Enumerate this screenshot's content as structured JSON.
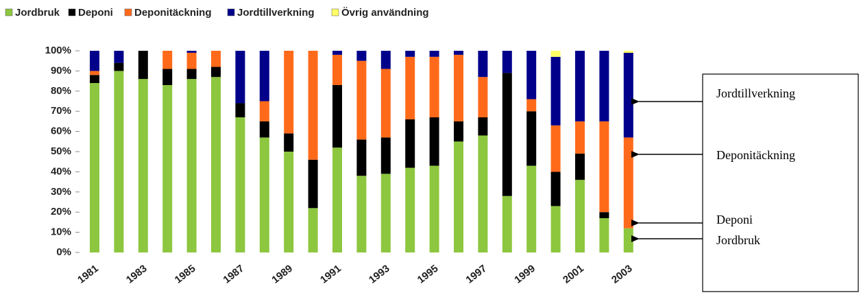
{
  "chart_data": {
    "type": "stacked_bar",
    "categories": [
      "1981",
      null,
      "1983",
      null,
      "1985",
      null,
      "1987",
      null,
      "1989",
      null,
      "1991",
      null,
      "1993",
      null,
      "1995",
      null,
      "1997",
      null,
      "1999",
      null,
      "2001",
      null,
      "2003"
    ],
    "series": [
      {
        "name": "Jordbruk",
        "color": "#8dc63f",
        "values": [
          84,
          90,
          86,
          83,
          86,
          87,
          67,
          57,
          50,
          22,
          52,
          38,
          39,
          42,
          43,
          55,
          58,
          28,
          43,
          23,
          36,
          17,
          12
        ]
      },
      {
        "name": "Deponi",
        "color": "#000000",
        "values": [
          4,
          4,
          14,
          8,
          5,
          5,
          7,
          8,
          9,
          24,
          31,
          18,
          18,
          24,
          24,
          10,
          9,
          61,
          27,
          17,
          13,
          3,
          0
        ]
      },
      {
        "name": "Deponitäckning",
        "color": "#ff6a1a",
        "values": [
          2,
          0,
          0,
          9,
          8,
          8,
          0,
          10,
          41,
          54,
          15,
          39,
          34,
          31,
          30,
          33,
          20,
          0,
          6,
          23,
          16,
          45,
          45
        ]
      },
      {
        "name": "Jordtillverkning",
        "color": "#00008b",
        "values": [
          10,
          6,
          0,
          0,
          1,
          0,
          26,
          25,
          0,
          0,
          2,
          5,
          9,
          3,
          3,
          2,
          13,
          11,
          24,
          34,
          35,
          35,
          42
        ]
      },
      {
        "name": "Övrig användning",
        "color": "#ffff66",
        "values": [
          0,
          0,
          0,
          0,
          0,
          0,
          0,
          0,
          0,
          0,
          0,
          0,
          0,
          0,
          0,
          0,
          0,
          0,
          0,
          3,
          0,
          0,
          1
        ]
      }
    ],
    "ylim": [
      0,
      100
    ],
    "yticks": [
      {
        "value": 0,
        "label": "0%"
      },
      {
        "value": 10,
        "label": "10%"
      },
      {
        "value": 20,
        "label": "20%"
      },
      {
        "value": 30,
        "label": "30%"
      },
      {
        "value": 40,
        "label": "40%"
      },
      {
        "value": 50,
        "label": "50%"
      },
      {
        "value": 60,
        "label": "60%"
      },
      {
        "value": 70,
        "label": "70%"
      },
      {
        "value": 80,
        "label": "80%"
      },
      {
        "value": 90,
        "label": "90%"
      },
      {
        "value": 100,
        "label": "100%"
      }
    ],
    "legend": "top-left",
    "annotations": [
      "Jordtillverkning",
      "Deponitäckning",
      "Deponi",
      "Jordbruk"
    ]
  }
}
